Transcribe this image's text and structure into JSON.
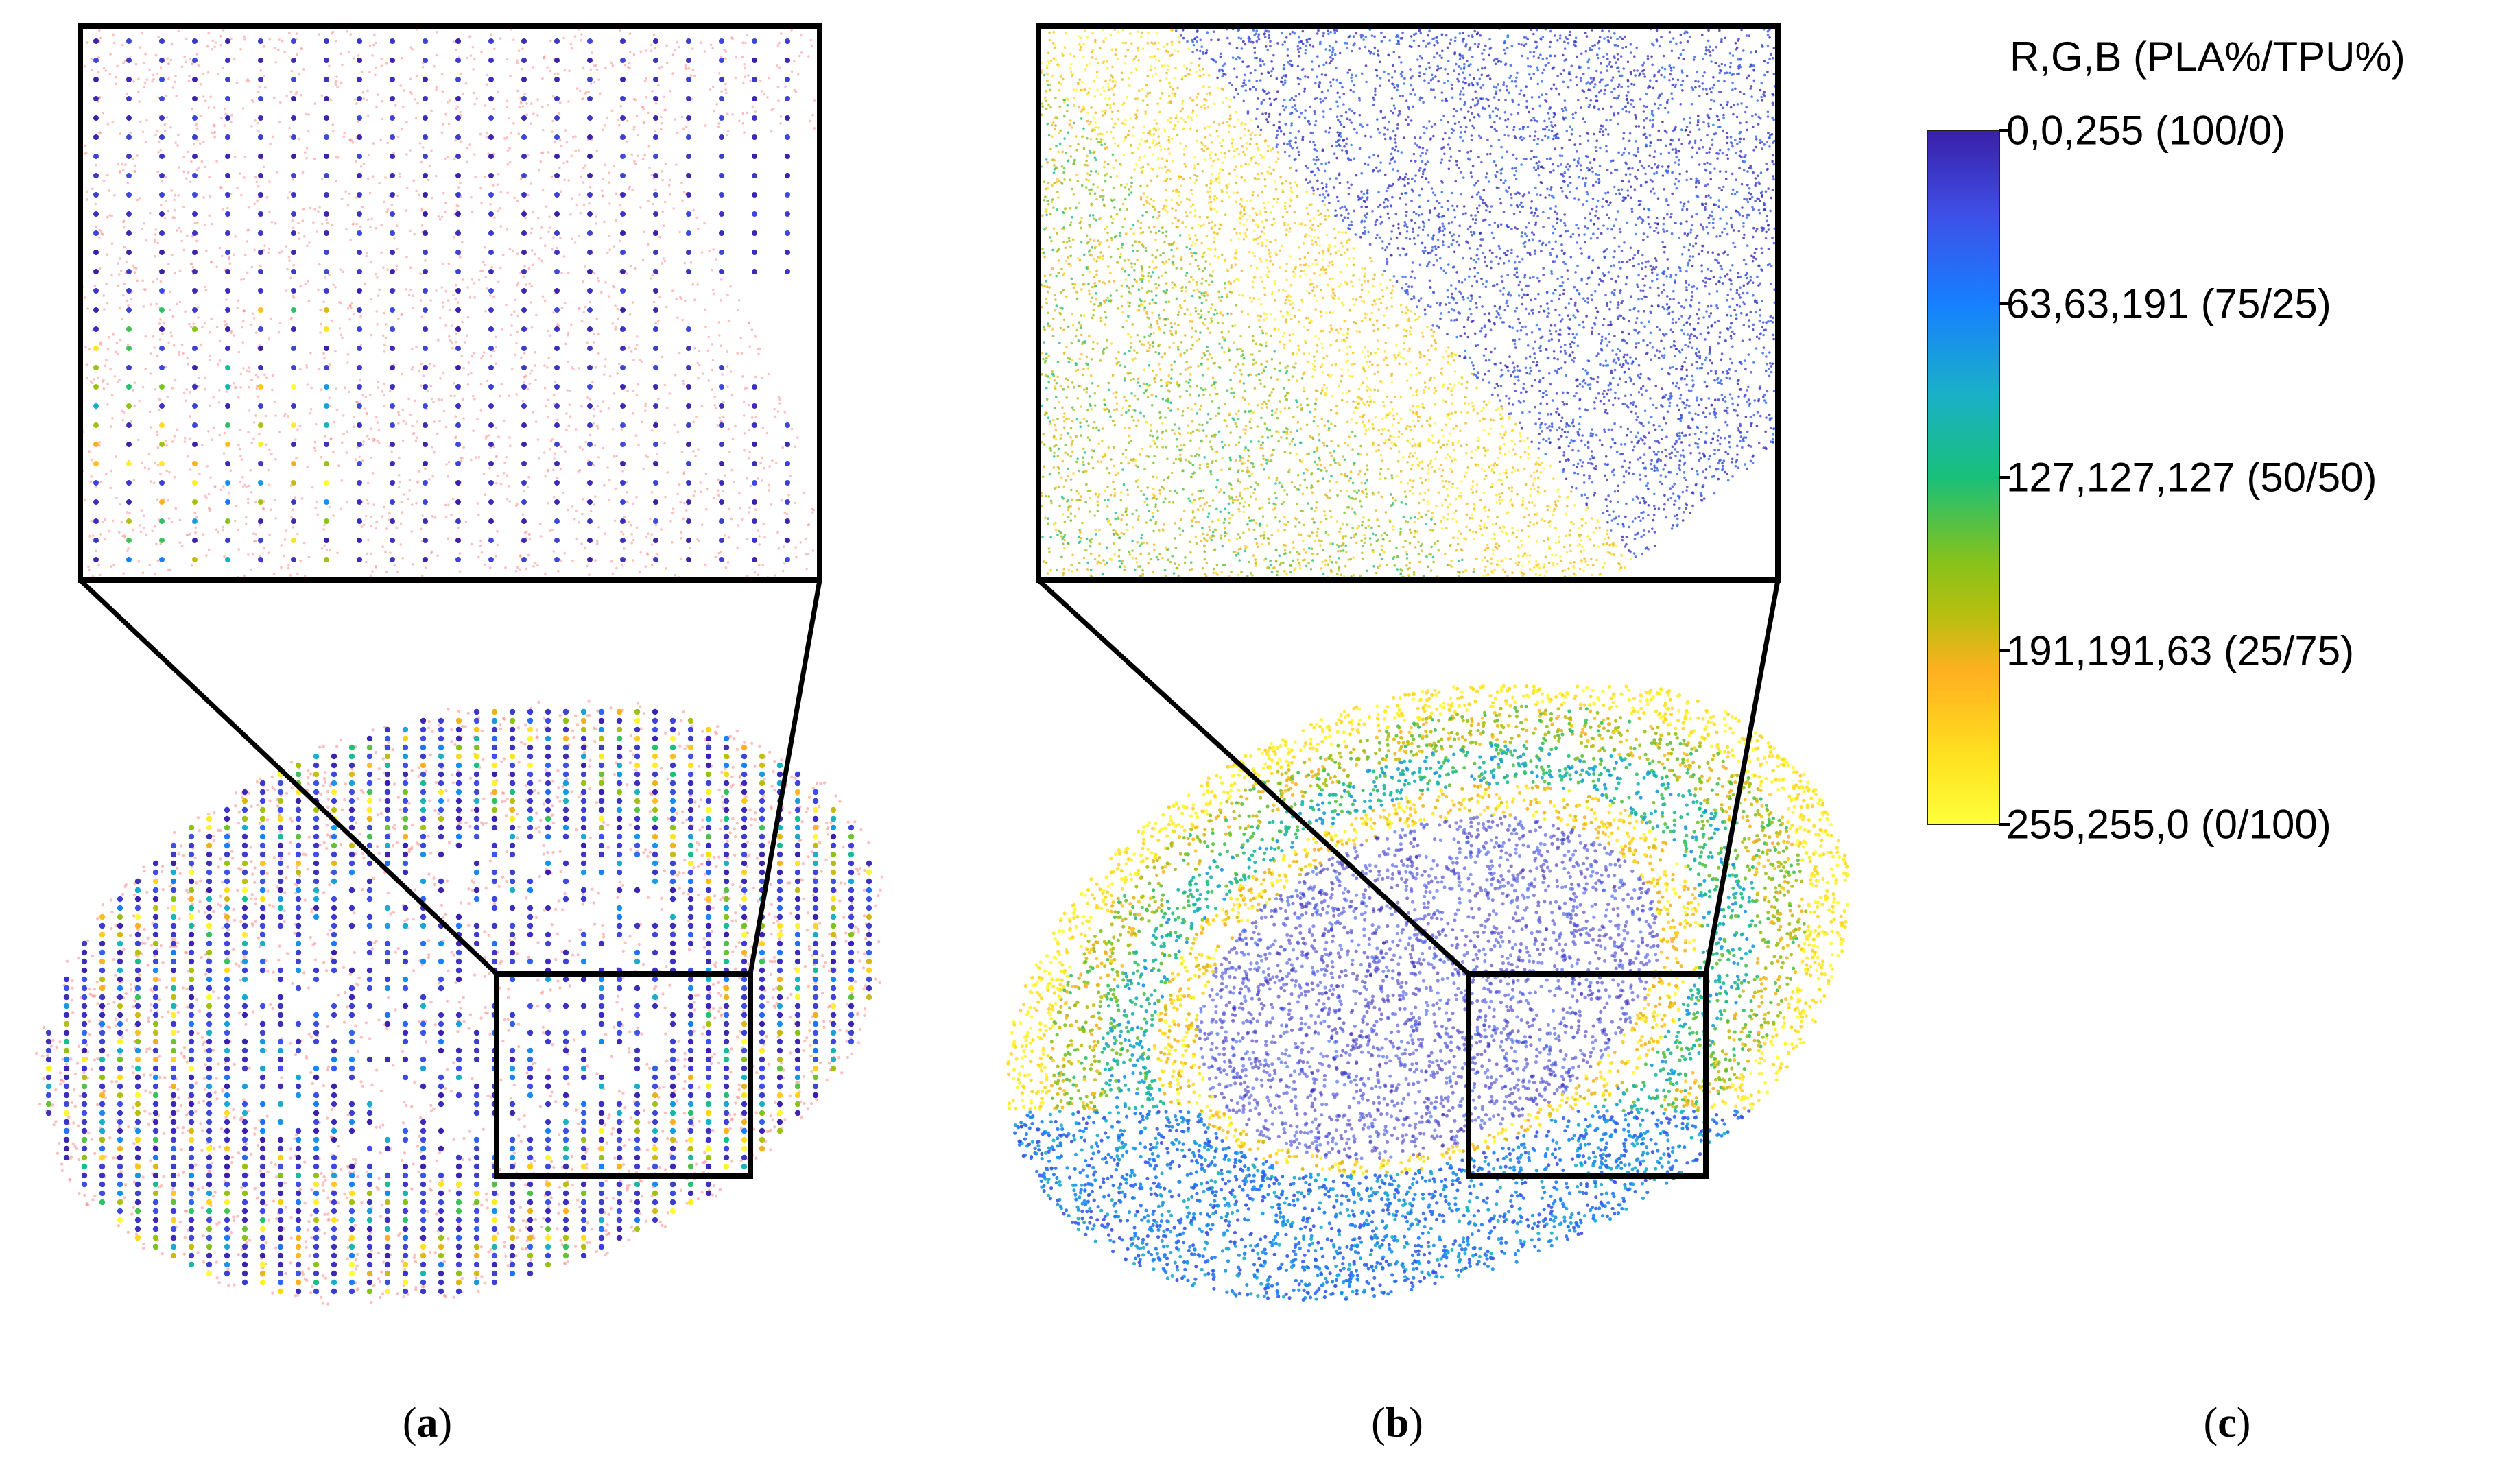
{
  "panels": [
    {
      "id": "a",
      "label_pre": "(",
      "label_letter": "a",
      "label_post": ")",
      "point_colormode": "pink-sparse-with-colored-dots"
    },
    {
      "id": "b",
      "label_pre": "(",
      "label_letter": "b",
      "label_post": ")",
      "point_colormode": "full-colormap"
    },
    {
      "id": "c",
      "label_pre": "(",
      "label_letter": "c",
      "label_post": ")"
    }
  ],
  "colorbar": {
    "title": "R,G,B (PLA%/TPU%)",
    "ticks": [
      {
        "text": "0,0,255 (100/0)",
        "fraction": 0.0
      },
      {
        "text": "63,63,191 (75/25)",
        "fraction": 0.25
      },
      {
        "text": "127,127,127 (50/50)",
        "fraction": 0.5
      },
      {
        "text": "191,191,63 (25/75)",
        "fraction": 0.75
      },
      {
        "text": "255,255,0 (0/100)",
        "fraction": 1.0
      }
    ],
    "gradient_colors": [
      "#3a1fa8",
      "#3f4fe6",
      "#1680ff",
      "#1ab0c8",
      "#19c07a",
      "#86c21a",
      "#b8bf10",
      "#ffb020",
      "#ffe020",
      "#ffff3a"
    ]
  },
  "colors": {
    "pla_blue": "#3b20b0",
    "tpu_yellow": "#ffe600",
    "pink": "#ff8a8a",
    "frame": "#000000"
  }
}
